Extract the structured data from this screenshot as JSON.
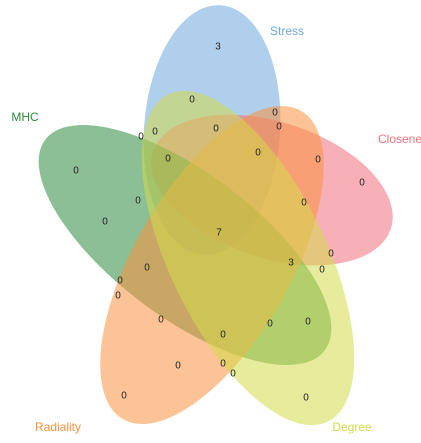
{
  "sets": [
    {
      "name": "Stress",
      "color": "#6fa8dc"
    },
    {
      "name": "Closene",
      "color": "#f2707e"
    },
    {
      "name": "MHC",
      "color": "#2e8b3e"
    },
    {
      "name": "Radiality",
      "color": "#f7923f"
    },
    {
      "name": "Degree",
      "color": "#d4da4a"
    }
  ],
  "regions": [
    "3",
    "0",
    "0",
    "0",
    "0",
    "0",
    "0",
    "0",
    "0",
    "0",
    "0",
    "0",
    "0",
    "0",
    "0",
    "7",
    "0",
    "3",
    "0",
    "0",
    "0",
    "0",
    "0",
    "0",
    "0",
    "0",
    "0",
    "0",
    "0",
    "0",
    "0"
  ]
}
